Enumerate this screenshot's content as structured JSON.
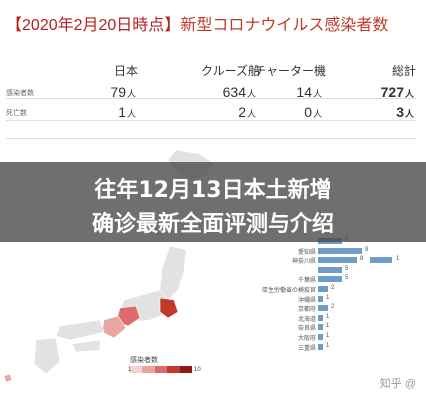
{
  "header": {
    "bracket_open": "【",
    "date_title": "2020年2月20日時点",
    "bracket_close": "】",
    "subject": "新型コロナウイルス感染者数"
  },
  "table": {
    "columns": [
      "日本",
      "クルーズ船",
      "チャーター機",
      "総計"
    ],
    "unit": "人",
    "rows": [
      {
        "label": "感染者数",
        "values": [
          "79",
          "634",
          "14",
          "727"
        ]
      },
      {
        "label": "死亡数",
        "values": [
          "1",
          "2",
          "0",
          "3"
        ]
      }
    ]
  },
  "banner": {
    "line1": "往年12月13日本土新增",
    "line2": "确诊最新全面评测与介绍"
  },
  "bar_chart": {
    "rows": [
      {
        "label": "",
        "value": 5
      },
      {
        "label": "愛知県",
        "value": 9
      },
      {
        "label": "神奈川県",
        "value": 8
      },
      {
        "label": "",
        "value": 5
      },
      {
        "label": "千葉県",
        "value": 5
      },
      {
        "label": "厚生労働省の検疫官",
        "value": 2
      },
      {
        "label": "沖縄県",
        "value": 1
      },
      {
        "label": "京都府",
        "value": 2
      },
      {
        "label": "北海道",
        "value": 1
      },
      {
        "label": "奈良県",
        "value": 1
      },
      {
        "label": "大阪府",
        "value": 1
      },
      {
        "label": "三重県",
        "value": 1
      }
    ],
    "extra_value_label": "1"
  },
  "legend": {
    "title": "感染者数",
    "min": "1",
    "max": "10",
    "colors": [
      "#f6d2d2",
      "#eba4a4",
      "#dd6b6b",
      "#c0392b",
      "#8b1a1a"
    ]
  },
  "map_colors": {
    "land": "#e2e2e2",
    "border": "#ffffff",
    "light_red": "#eba4a4",
    "mid_red": "#dd6b6b",
    "dark_red": "#c0392b"
  },
  "watermark": "知乎 @"
}
